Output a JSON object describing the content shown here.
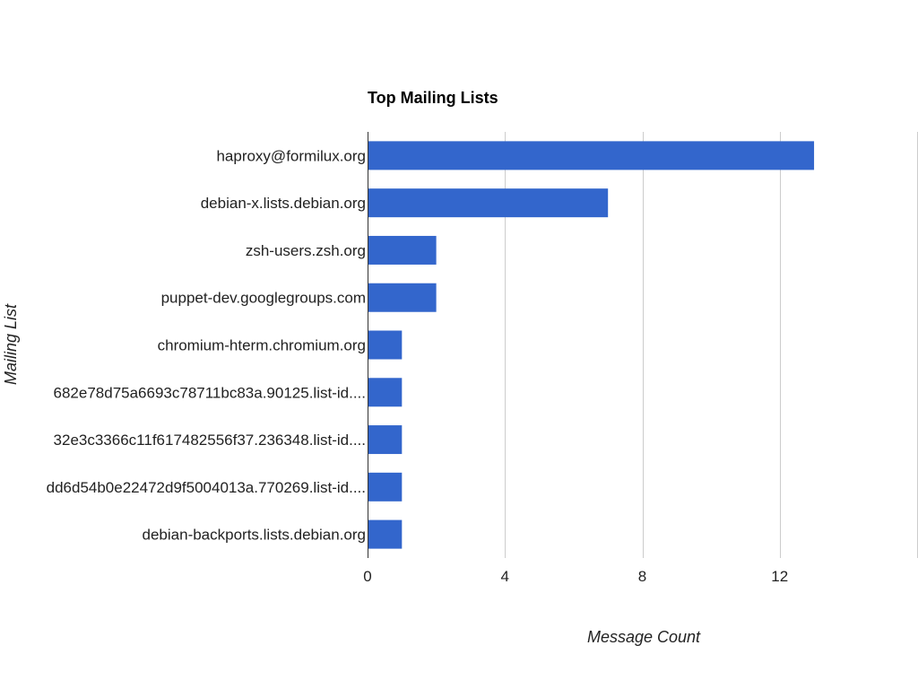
{
  "chart_data": {
    "type": "bar",
    "orientation": "horizontal",
    "title": "Top Mailing Lists",
    "xlabel": "Message Count",
    "ylabel": "Mailing List",
    "categories": [
      "haproxy@formilux.org",
      "debian-x.lists.debian.org",
      "zsh-users.zsh.org",
      "puppet-dev.googlegroups.com",
      "chromium-hterm.chromium.org",
      "682e78d75a6693c78711bc83a.90125.list-id....",
      "32e3c3366c11f617482556f37.236348.list-id....",
      "dd6d54b0e22472d9f5004013a.770269.list-id....",
      "debian-backports.lists.debian.org"
    ],
    "values": [
      13,
      7,
      2,
      2,
      1,
      1,
      1,
      1,
      1
    ],
    "xlim": [
      0,
      16
    ],
    "xticks": [
      0,
      4,
      8,
      12
    ],
    "grid": true,
    "legend": "none",
    "bar_color": "#3366cc"
  }
}
